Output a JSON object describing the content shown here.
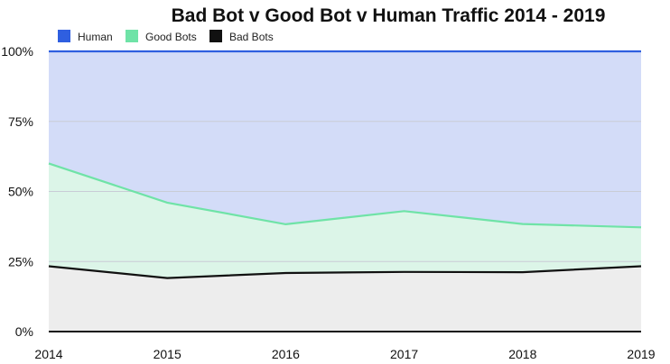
{
  "chart_data": {
    "type": "area",
    "title": "Bad Bot v Good Bot v Human Traffic 2014 - 2019",
    "xlabel": "",
    "ylabel": "",
    "x": [
      "2014",
      "2015",
      "2016",
      "2017",
      "2018",
      "2019"
    ],
    "y_ticks": [
      "0%",
      "25%",
      "50%",
      "75%",
      "100%"
    ],
    "ylim": [
      0,
      100
    ],
    "stacked": true,
    "grid": true,
    "legend_position": "top-left",
    "series": [
      {
        "name": "Human",
        "color": "#2f5fe0",
        "fill": "#d3dcf8",
        "values": [
          40.0,
          54.0,
          61.7,
          57.0,
          61.6,
          62.8
        ]
      },
      {
        "name": "Good Bots",
        "color": "#6fe3a7",
        "fill": "#dcf5e8",
        "values": [
          36.7,
          26.9,
          17.4,
          21.7,
          17.2,
          13.9
        ]
      },
      {
        "name": "Bad Bots",
        "color": "#111111",
        "fill": "#ededed",
        "values": [
          23.3,
          19.1,
          20.9,
          21.3,
          21.2,
          23.3
        ]
      }
    ]
  }
}
